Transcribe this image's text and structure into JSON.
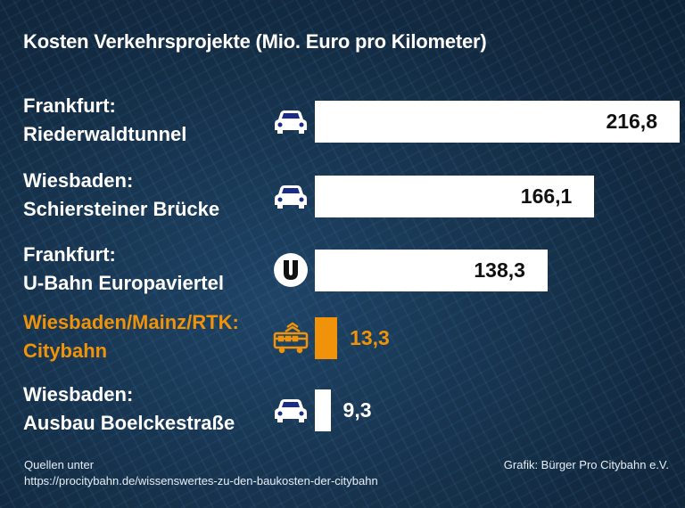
{
  "chart_data": {
    "type": "bar",
    "orientation": "horizontal",
    "title": "Kosten  Verkehrsprojekte (Mio. Euro pro Kilometer)",
    "categories": [
      [
        "Frankfurt:",
        "Riederwaldtunnel"
      ],
      [
        "Wiesbaden:",
        "Schiersteiner Brücke"
      ],
      [
        "Frankfurt:",
        "U-Bahn Europaviertel"
      ],
      [
        "Wiesbaden/Mainz/RTK:",
        "Citybahn"
      ],
      [
        "Wiesbaden:",
        "Ausbau Boelckestraße"
      ]
    ],
    "values": [
      216.8,
      166.1,
      138.3,
      13.3,
      9.3
    ],
    "value_labels": [
      "216,8",
      "166,1",
      "138,3",
      "13,3",
      "9,3"
    ],
    "icons": [
      "car-icon",
      "car-icon",
      "u-bahn-icon",
      "tram-icon",
      "car-icon"
    ],
    "highlight_index": 3,
    "colors": {
      "bar": "#ffffff",
      "highlight": "#f0930a",
      "text": "#ffffff",
      "value_on_bar": "#111111",
      "icon_fill": "#1a2a8a",
      "background": "#14304a"
    },
    "grid": false
  },
  "footer": {
    "source_line1": "Quellen unter",
    "source_line2": "https://procitybahn.de/wissenswertes-zu-den-baukosten-der-citybahn",
    "credit": "Grafik: Bürger Pro Citybahn e.V."
  }
}
